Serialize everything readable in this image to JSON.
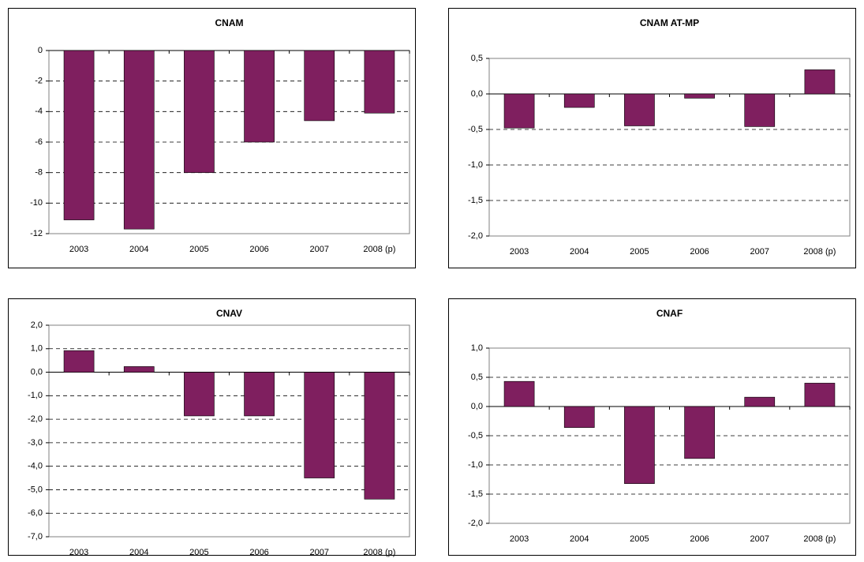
{
  "chart_data": [
    {
      "type": "bar",
      "title": "CNAM",
      "color": "#7f1f5f",
      "grid": true,
      "categories": [
        "2003",
        "2004",
        "2005",
        "2006",
        "2007",
        "2008 (p)"
      ],
      "values": [
        -11.1,
        -11.7,
        -8.0,
        -6.0,
        -4.6,
        -4.1
      ],
      "ylim": [
        -12,
        0
      ],
      "yticks": [
        -12,
        -10,
        -8,
        -6,
        -4,
        -2,
        0
      ]
    },
    {
      "type": "bar",
      "title": "CNAM AT-MP",
      "color": "#7f1f5f",
      "grid": true,
      "categories": [
        "2003",
        "2004",
        "2005",
        "2006",
        "2007",
        "2008 (p)"
      ],
      "values": [
        -0.48,
        -0.19,
        -0.45,
        -0.06,
        -0.46,
        0.34
      ],
      "ylim": [
        -2,
        0.5
      ],
      "yticks": [
        {
          "value": -2,
          "label": "-2,0"
        },
        {
          "value": -1.5,
          "label": "-1,5"
        },
        {
          "value": -1,
          "label": "-1,0"
        },
        {
          "value": -0.5,
          "label": "-0,5"
        },
        {
          "value": 0,
          "label": "0,0"
        },
        {
          "value": 0.5,
          "label": "0,5"
        }
      ]
    },
    {
      "type": "bar",
      "title": "CNAV",
      "color": "#7f1f5f",
      "grid": true,
      "categories": [
        "2003",
        "2004",
        "2005",
        "2006",
        "2007",
        "2008 (p)"
      ],
      "values": [
        0.92,
        0.24,
        -1.86,
        -1.86,
        -4.5,
        -5.4
      ],
      "ylim": [
        -7,
        2
      ],
      "yticks": [
        {
          "value": -7,
          "label": "-7,0"
        },
        {
          "value": -6,
          "label": "-6,0"
        },
        {
          "value": -5,
          "label": "-5,0"
        },
        {
          "value": -4,
          "label": "-4,0"
        },
        {
          "value": -3,
          "label": "-3,0"
        },
        {
          "value": -2,
          "label": "-2,0"
        },
        {
          "value": -1,
          "label": "-1,0"
        },
        {
          "value": 0,
          "label": "0,0"
        },
        {
          "value": 1,
          "label": "1,0"
        },
        {
          "value": 2,
          "label": "2,0"
        }
      ]
    },
    {
      "type": "bar",
      "title": "CNAF",
      "color": "#7f1f5f",
      "grid": true,
      "categories": [
        "2003",
        "2004",
        "2005",
        "2006",
        "2007",
        "2008 (p)"
      ],
      "values": [
        0.43,
        -0.36,
        -1.32,
        -0.89,
        0.16,
        0.4
      ],
      "ylim": [
        -2,
        1
      ],
      "yticks": [
        {
          "value": -2,
          "label": "-2,0"
        },
        {
          "value": -1.5,
          "label": "-1,5"
        },
        {
          "value": -1,
          "label": "-1,0"
        },
        {
          "value": -0.5,
          "label": "-0,5"
        },
        {
          "value": 0,
          "label": "0,0"
        },
        {
          "value": 0.5,
          "label": "0,5"
        },
        {
          "value": 1,
          "label": "1,0"
        }
      ]
    }
  ]
}
